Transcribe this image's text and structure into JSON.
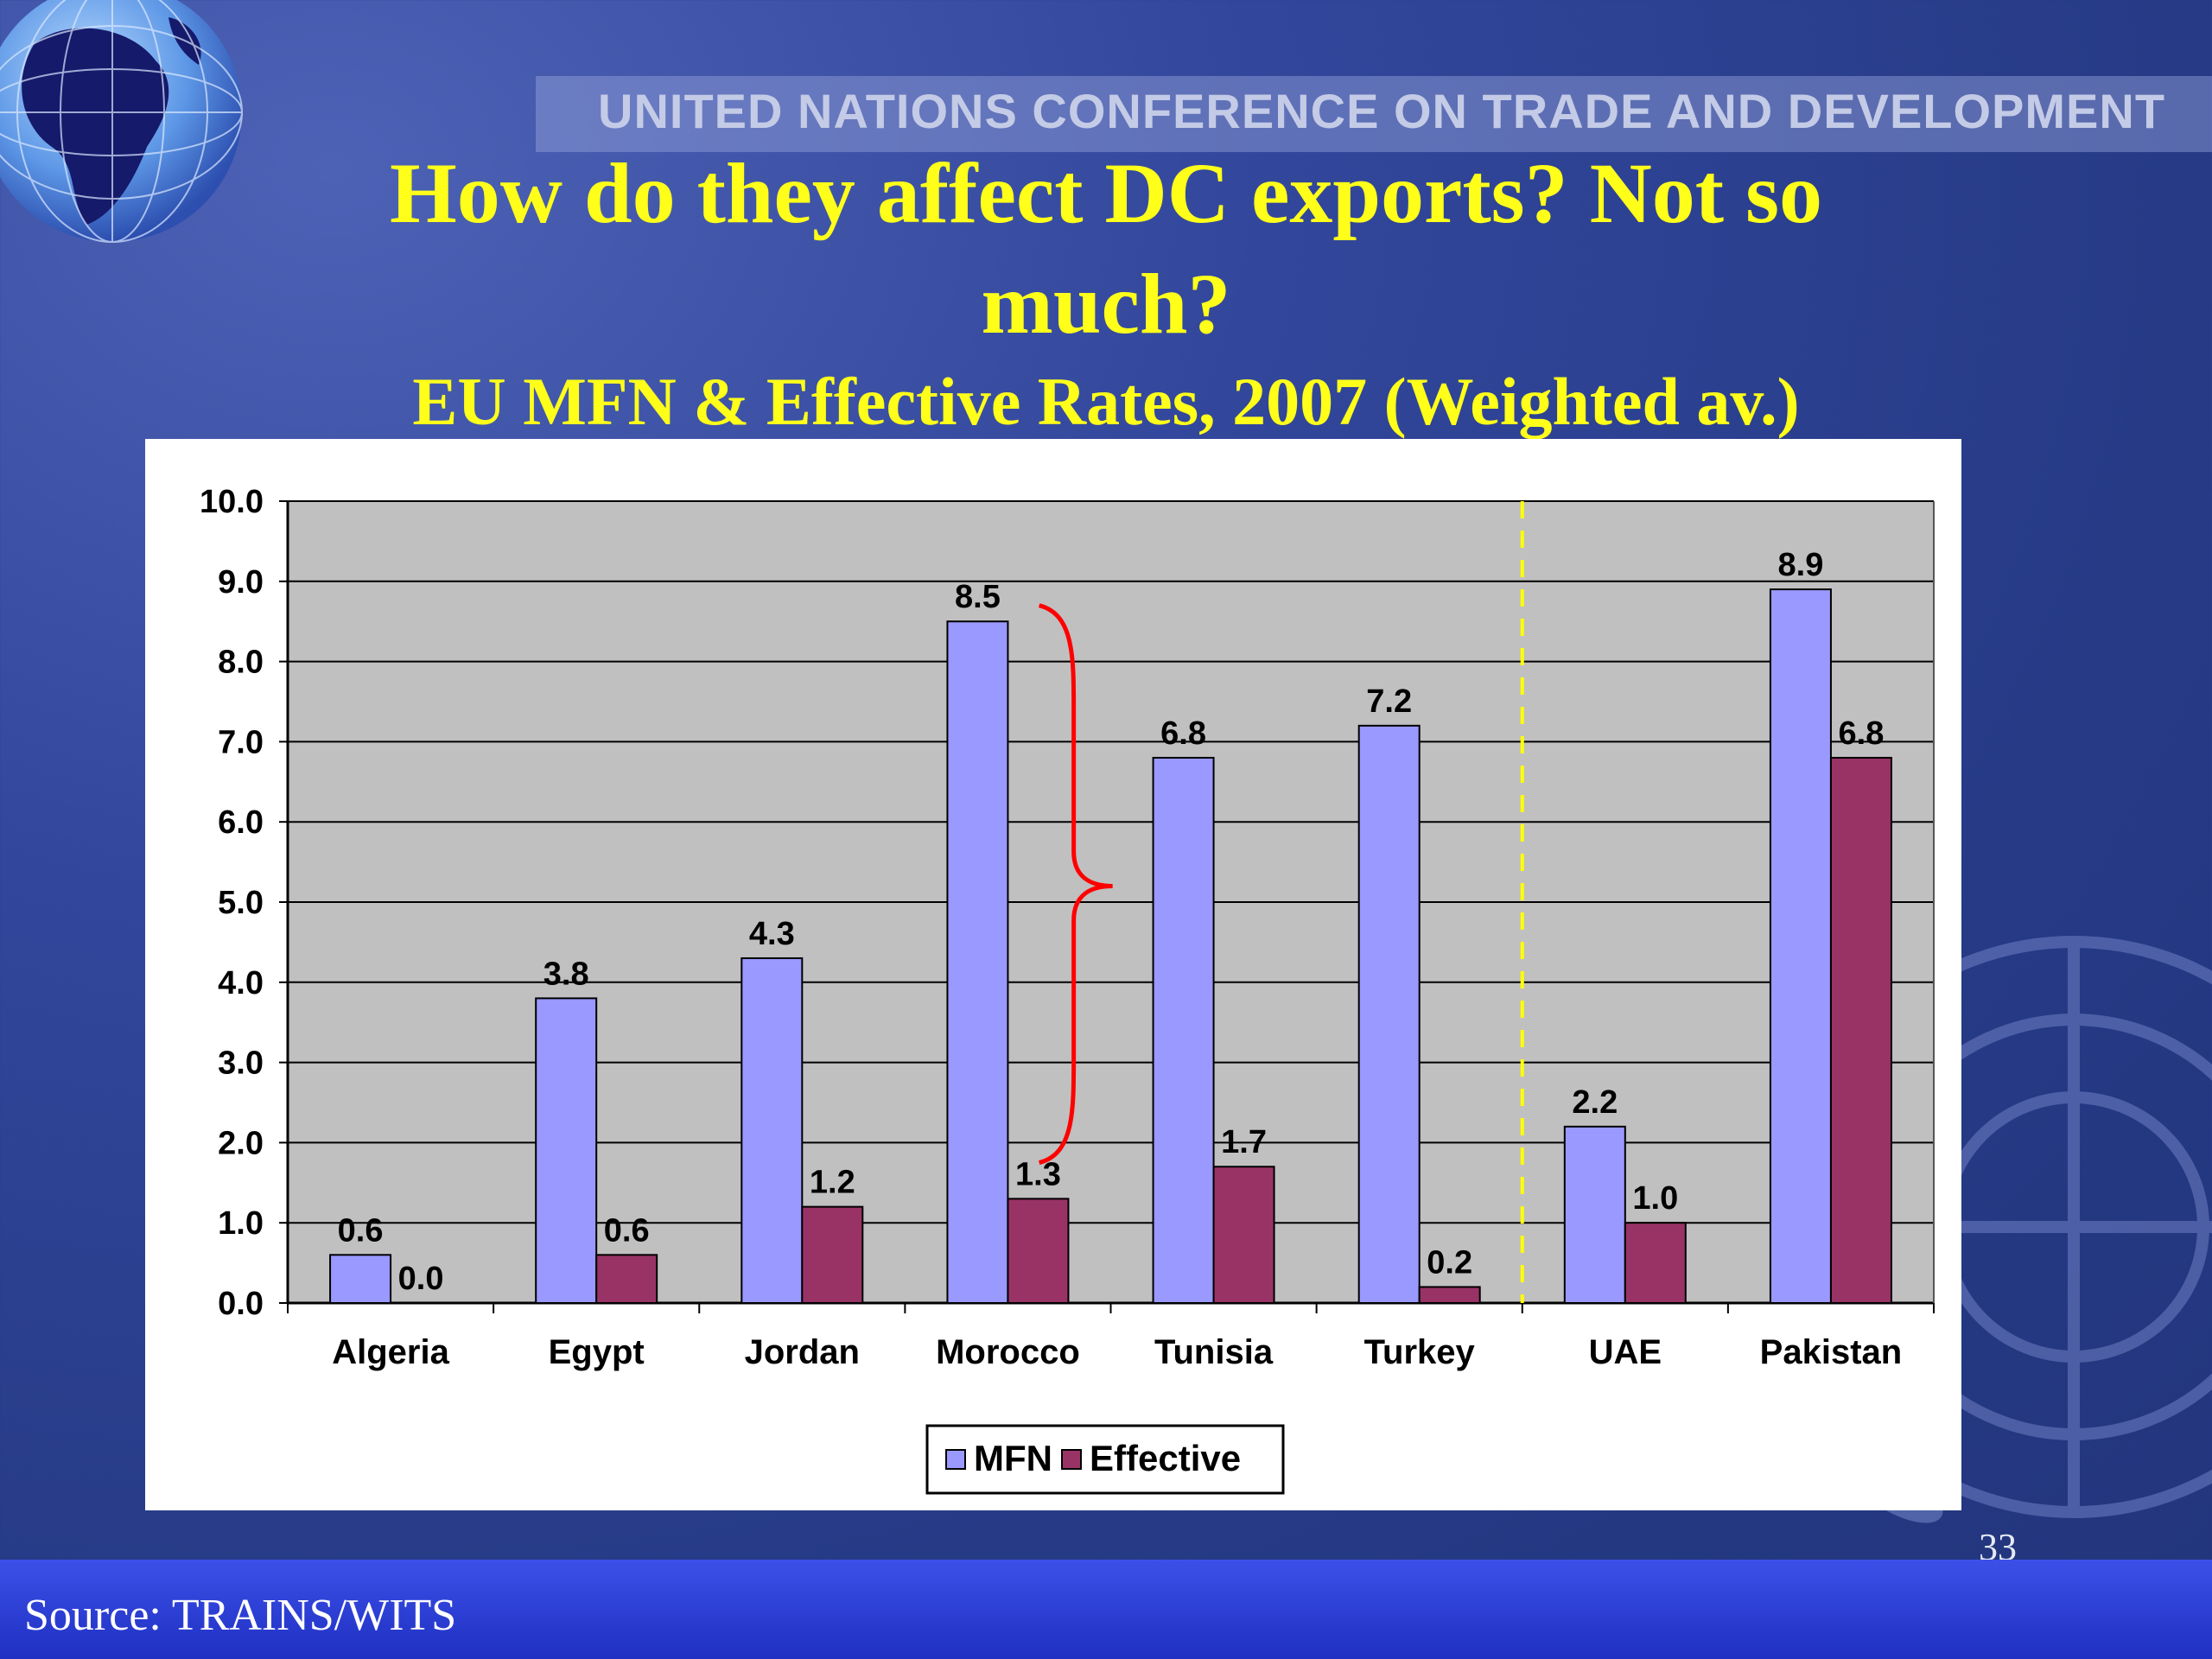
{
  "header": {
    "org_name": "UNITED NATIONS CONFERENCE ON TRADE AND DEVELOPMENT",
    "title_line1": "How do they affect DC exports? Not so",
    "title_line2": "much?",
    "subtitle": "EU MFN & Effective Rates, 2007 (Weighted av.)"
  },
  "footer": {
    "source": "Source: TRAINS/WITS",
    "page_number": "33"
  },
  "colors": {
    "title": "#ffff1a",
    "mfn": "#9999ff",
    "effective": "#993366",
    "plot_background": "#c0c0c0",
    "brace": "#ff0000",
    "divider": "#ffff00"
  },
  "chart_data": {
    "type": "bar",
    "categories": [
      "Algeria",
      "Egypt",
      "Jordan",
      "Morocco",
      "Tunisia",
      "Turkey",
      "UAE",
      "Pakistan"
    ],
    "series": [
      {
        "name": "MFN",
        "values": [
          0.6,
          3.8,
          4.3,
          8.5,
          6.8,
          7.2,
          2.2,
          8.9
        ]
      },
      {
        "name": "Effective",
        "values": [
          0.0,
          0.6,
          1.2,
          1.3,
          1.7,
          0.2,
          1.0,
          6.8
        ]
      }
    ],
    "ylim": [
      0,
      10
    ],
    "yticks": [
      "0.0",
      "1.0",
      "2.0",
      "3.0",
      "4.0",
      "5.0",
      "6.0",
      "7.0",
      "8.0",
      "9.0",
      "10.0"
    ],
    "grid": true,
    "legend": "bottom-center",
    "data_labels": true,
    "annotations": [
      "brace spanning Morocco and Tunisia",
      "dashed divider between Turkey and UAE"
    ]
  }
}
